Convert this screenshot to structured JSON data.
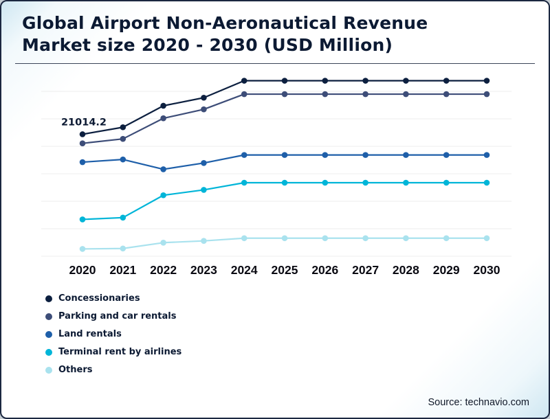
{
  "title_lines": [
    "Global Airport Non-Aeronautical Revenue",
    "Market size 2020 - 2030 (USD Million)"
  ],
  "source": "Source: technavio.com",
  "chart_data": {
    "type": "line",
    "title": "Global Airport Non-Aeronautical Revenue Market size 2020 - 2030 (USD Million)",
    "xlabel": "",
    "ylabel": "",
    "categories": [
      "2020",
      "2021",
      "2022",
      "2023",
      "2024",
      "2025",
      "2026",
      "2027",
      "2028",
      "2029",
      "2030"
    ],
    "series": [
      {
        "name": "Concessionaries",
        "color": "#0c1f3f",
        "values": [
          21014.2,
          21800,
          24200,
          25100,
          27000,
          27000,
          27000,
          27000,
          27000,
          27000,
          27000
        ]
      },
      {
        "name": "Parking and car rentals",
        "color": "#3d4d78",
        "values": [
          20000,
          20500,
          22800,
          23800,
          25500,
          25500,
          25500,
          25500,
          25500,
          25500,
          25500
        ]
      },
      {
        "name": "Land rentals",
        "color": "#1e5fa9",
        "values": [
          17900,
          18200,
          17100,
          17800,
          18700,
          18700,
          18700,
          18700,
          18700,
          18700,
          18700
        ]
      },
      {
        "name": "Terminal rent by airlines",
        "color": "#00b5d8",
        "values": [
          11500,
          11700,
          14200,
          14800,
          15600,
          15600,
          15600,
          15600,
          15600,
          15600,
          15600
        ]
      },
      {
        "name": "Others",
        "color": "#a9e2ee",
        "values": [
          8200,
          8250,
          8900,
          9100,
          9400,
          9400,
          9400,
          9400,
          9400,
          9400,
          9400
        ]
      }
    ],
    "annotation": {
      "text": "21014.2",
      "series": "Concessionaries",
      "category": "2020",
      "value": 21014.2
    },
    "ylim": [
      8000,
      27500
    ],
    "grid": "horizontal",
    "legend_position": "bottom-left"
  }
}
